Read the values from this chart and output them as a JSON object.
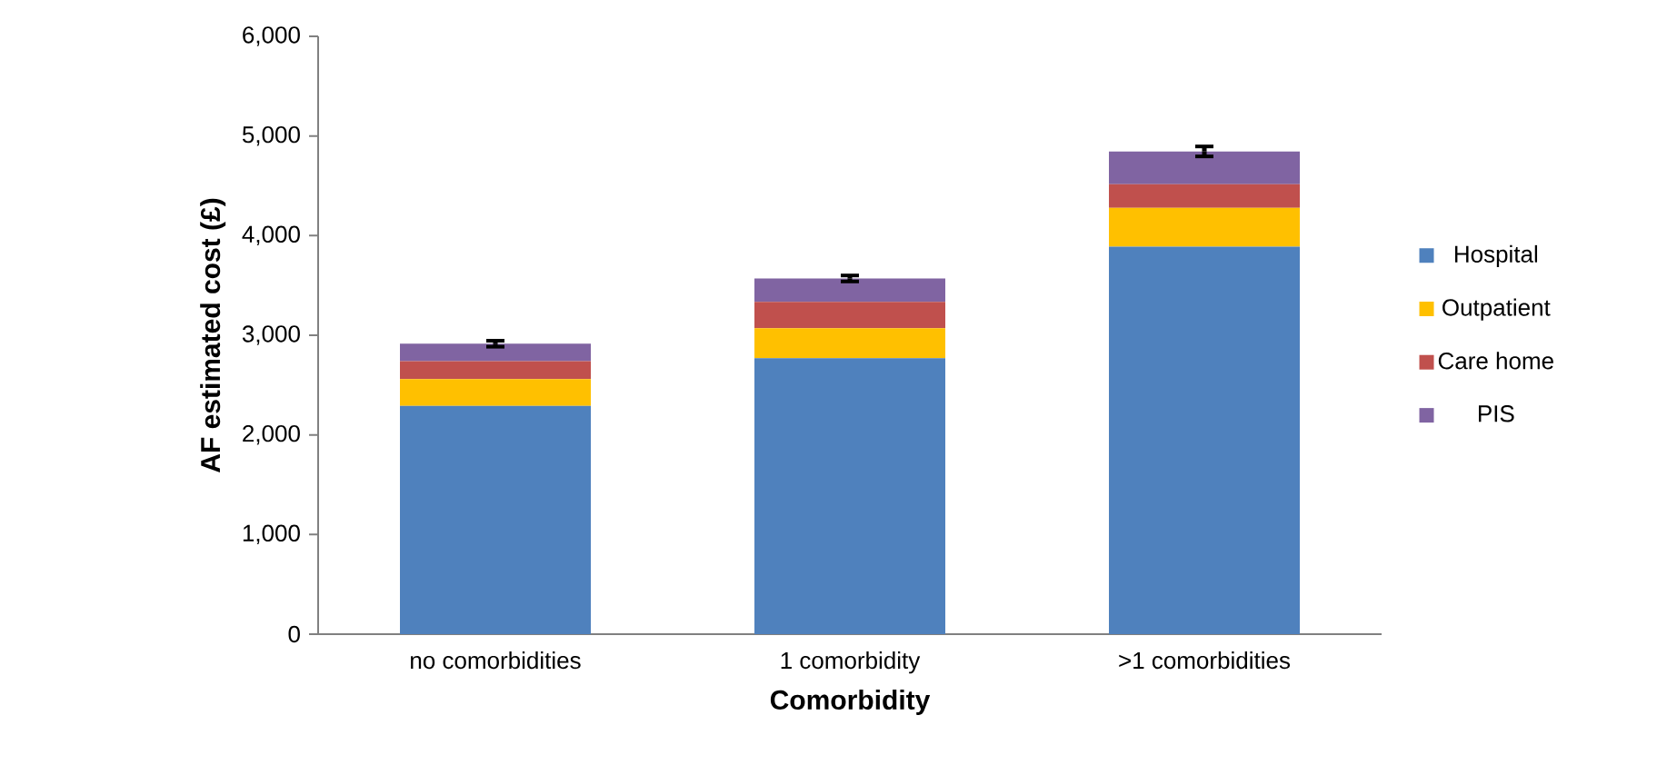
{
  "chart_data": {
    "type": "bar",
    "stacked": true,
    "xlabel": "Comorbidity",
    "ylabel": "AF estimated cost (£)",
    "categories": [
      "no comorbidities",
      "1 comorbidity",
      ">1 comorbidities"
    ],
    "series": [
      {
        "name": "Hospital",
        "color": "#4f81bd",
        "values": [
          2290,
          2770,
          3890
        ]
      },
      {
        "name": "Outpatient",
        "color": "#ffc000",
        "values": [
          270,
          300,
          390
        ]
      },
      {
        "name": "Care home",
        "color": "#c0504d",
        "values": [
          180,
          265,
          235
        ]
      },
      {
        "name": "PIS",
        "color": "#8064a2",
        "values": [
          175,
          235,
          330
        ],
        "errors": [
          30,
          30,
          50
        ]
      }
    ],
    "ylim": [
      0,
      6000
    ],
    "yticks": [
      {
        "value": 0,
        "label": "0"
      },
      {
        "value": 1000,
        "label": "1,000"
      },
      {
        "value": 2000,
        "label": "2,000"
      },
      {
        "value": 3000,
        "label": "3,000"
      },
      {
        "value": 4000,
        "label": "4,000"
      },
      {
        "value": 5000,
        "label": "5,000"
      },
      {
        "value": 6000,
        "label": "6,000"
      }
    ],
    "grid": false,
    "legend": "right"
  }
}
